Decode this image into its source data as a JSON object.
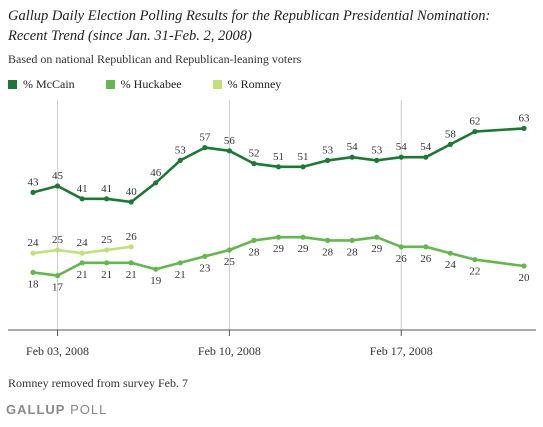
{
  "title_line1": "Gallup Daily Election Polling Results for the Republican Presidential Nomination:",
  "title_line2": "Recent Trend (since Jan. 31-Feb. 2, 2008)",
  "subtitle": "Based on national Republican and Republican-leaning voters",
  "note": "Romney removed from survey Feb. 7",
  "brand": {
    "strong": "GALLUP",
    "rest": " POLL"
  },
  "colors": {
    "mccain": "#1a7a34",
    "huckabee": "#62b84a",
    "romney": "#c2e07a",
    "grid": "#cccccc",
    "axis": "#555555"
  },
  "chart_data": {
    "type": "line",
    "x": [
      "2008-02-02",
      "2008-02-03",
      "2008-02-04",
      "2008-02-05",
      "2008-02-06",
      "2008-02-07",
      "2008-02-08",
      "2008-02-09",
      "2008-02-10",
      "2008-02-11",
      "2008-02-12",
      "2008-02-13",
      "2008-02-14",
      "2008-02-15",
      "2008-02-16",
      "2008-02-17",
      "2008-02-18",
      "2008-02-19",
      "2008-02-20",
      "2008-02-21",
      "2008-02-22"
    ],
    "x_ticks": [
      {
        "x": "2008-02-03",
        "label": "Feb 03, 2008"
      },
      {
        "x": "2008-02-10",
        "label": "Feb 10, 2008"
      },
      {
        "x": "2008-02-17",
        "label": "Feb 17, 2008"
      }
    ],
    "series": [
      {
        "name": "% McCain",
        "values": [
          43,
          45,
          41,
          41,
          40,
          46,
          53,
          57,
          56,
          52,
          51,
          51,
          53,
          54,
          53,
          54,
          54,
          58,
          62,
          null,
          63
        ]
      },
      {
        "name": "% Huckabee",
        "values": [
          18,
          17,
          21,
          21,
          21,
          19,
          21,
          23,
          25,
          28,
          29,
          29,
          28,
          28,
          29,
          26,
          26,
          24,
          22,
          null,
          20
        ]
      },
      {
        "name": "% Romney",
        "values": [
          24,
          25,
          24,
          25,
          26,
          null,
          null,
          null,
          null,
          null,
          null,
          null,
          null,
          null,
          null,
          null,
          null,
          null,
          null,
          null,
          null
        ]
      }
    ],
    "ylim": [
      0,
      70
    ],
    "grid": "vertical at tick dates",
    "legend": "top-left",
    "xlabel": "",
    "ylabel": ""
  }
}
